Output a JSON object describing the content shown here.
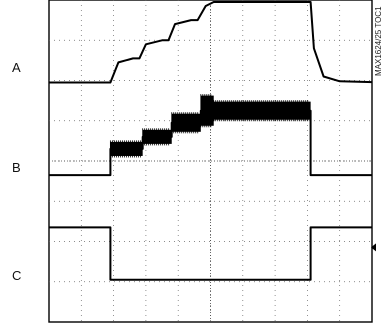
{
  "chart_data": {
    "type": "line",
    "title": "",
    "xlabel": "",
    "ylabel": "",
    "note": "MAX1624/25 TOC1",
    "grid": true,
    "x_divisions": 10,
    "y_divisions": 8,
    "xlim": [
      0,
      10
    ],
    "ylim": [
      0,
      8
    ],
    "channels": [
      {
        "label": "A",
        "points": [
          [
            0,
            5.95
          ],
          [
            1.9,
            5.95
          ],
          [
            2.15,
            6.45
          ],
          [
            2.6,
            6.55
          ],
          [
            2.8,
            6.55
          ],
          [
            3.0,
            6.9
          ],
          [
            3.5,
            7.0
          ],
          [
            3.7,
            7.0
          ],
          [
            3.9,
            7.4
          ],
          [
            4.4,
            7.5
          ],
          [
            4.6,
            7.5
          ],
          [
            4.85,
            7.85
          ],
          [
            5.1,
            7.95
          ],
          [
            8.1,
            7.95
          ],
          [
            8.2,
            6.8
          ],
          [
            8.5,
            6.1
          ],
          [
            9,
            5.98
          ],
          [
            10,
            5.96
          ]
        ]
      },
      {
        "label": "B",
        "points": [
          [
            0,
            3.65
          ],
          [
            1.9,
            3.65
          ],
          [
            1.9,
            4.3
          ],
          [
            2.9,
            4.3
          ],
          [
            2.9,
            4.6
          ],
          [
            3.8,
            4.6
          ],
          [
            3.8,
            4.95
          ],
          [
            4.7,
            4.95
          ],
          [
            4.7,
            5.25
          ],
          [
            8.1,
            5.25
          ],
          [
            8.1,
            3.65
          ],
          [
            10,
            3.65
          ]
        ],
        "ripple": [
          [
            1.9,
            2.9,
            0.35
          ],
          [
            2.9,
            3.8,
            0.35
          ],
          [
            3.8,
            4.7,
            0.45
          ],
          [
            4.7,
            5.1,
            0.75
          ],
          [
            5.1,
            8.1,
            0.45
          ]
        ]
      },
      {
        "label": "C",
        "points": [
          [
            0,
            2.35
          ],
          [
            1.9,
            2.35
          ],
          [
            1.9,
            1.05
          ],
          [
            8.1,
            1.05
          ],
          [
            8.1,
            2.35
          ],
          [
            10,
            2.35
          ]
        ]
      }
    ]
  }
}
